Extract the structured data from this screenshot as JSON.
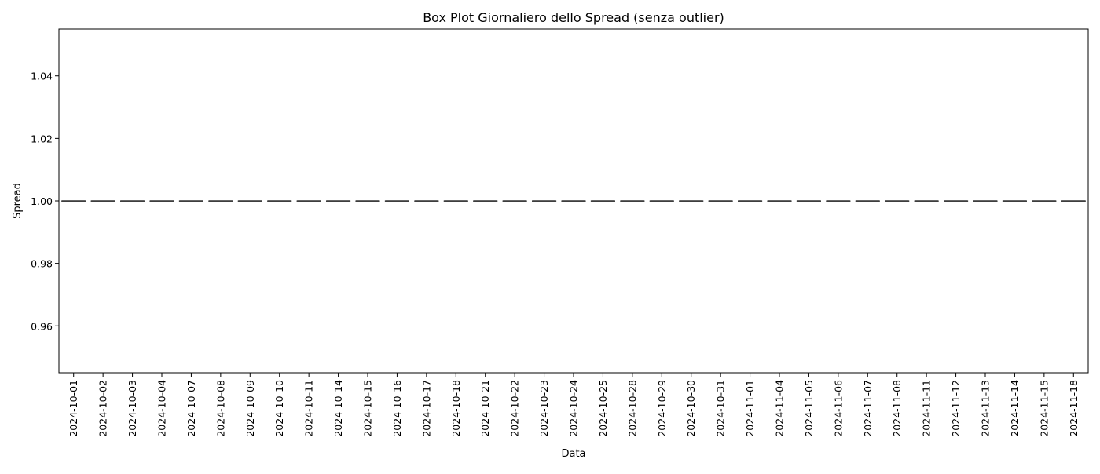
{
  "chart_data": {
    "type": "box",
    "title": "Box Plot Giornaliero dello Spread (senza outlier)",
    "xlabel": "Data",
    "ylabel": "Spread",
    "ylim": [
      0.945,
      1.055
    ],
    "yticks": [
      0.96,
      0.98,
      1.0,
      1.02,
      1.04
    ],
    "ytick_labels": [
      "0.96",
      "0.98",
      "1.00",
      "1.02",
      "1.04"
    ],
    "grid": false,
    "categories": [
      "2024-10-01",
      "2024-10-02",
      "2024-10-03",
      "2024-10-04",
      "2024-10-07",
      "2024-10-08",
      "2024-10-09",
      "2024-10-10",
      "2024-10-11",
      "2024-10-14",
      "2024-10-15",
      "2024-10-16",
      "2024-10-17",
      "2024-10-18",
      "2024-10-21",
      "2024-10-22",
      "2024-10-23",
      "2024-10-24",
      "2024-10-25",
      "2024-10-28",
      "2024-10-29",
      "2024-10-30",
      "2024-10-31",
      "2024-11-01",
      "2024-11-04",
      "2024-11-05",
      "2024-11-06",
      "2024-11-07",
      "2024-11-08",
      "2024-11-11",
      "2024-11-12",
      "2024-11-13",
      "2024-11-14",
      "2024-11-15",
      "2024-11-18"
    ],
    "boxes": [
      {
        "min": 1.0,
        "q1": 1.0,
        "median": 1.0,
        "q3": 1.0,
        "max": 1.0
      },
      {
        "min": 1.0,
        "q1": 1.0,
        "median": 1.0,
        "q3": 1.0,
        "max": 1.0
      },
      {
        "min": 1.0,
        "q1": 1.0,
        "median": 1.0,
        "q3": 1.0,
        "max": 1.0
      },
      {
        "min": 1.0,
        "q1": 1.0,
        "median": 1.0,
        "q3": 1.0,
        "max": 1.0
      },
      {
        "min": 1.0,
        "q1": 1.0,
        "median": 1.0,
        "q3": 1.0,
        "max": 1.0
      },
      {
        "min": 1.0,
        "q1": 1.0,
        "median": 1.0,
        "q3": 1.0,
        "max": 1.0
      },
      {
        "min": 1.0,
        "q1": 1.0,
        "median": 1.0,
        "q3": 1.0,
        "max": 1.0
      },
      {
        "min": 1.0,
        "q1": 1.0,
        "median": 1.0,
        "q3": 1.0,
        "max": 1.0
      },
      {
        "min": 1.0,
        "q1": 1.0,
        "median": 1.0,
        "q3": 1.0,
        "max": 1.0
      },
      {
        "min": 1.0,
        "q1": 1.0,
        "median": 1.0,
        "q3": 1.0,
        "max": 1.0
      },
      {
        "min": 1.0,
        "q1": 1.0,
        "median": 1.0,
        "q3": 1.0,
        "max": 1.0
      },
      {
        "min": 1.0,
        "q1": 1.0,
        "median": 1.0,
        "q3": 1.0,
        "max": 1.0
      },
      {
        "min": 1.0,
        "q1": 1.0,
        "median": 1.0,
        "q3": 1.0,
        "max": 1.0
      },
      {
        "min": 1.0,
        "q1": 1.0,
        "median": 1.0,
        "q3": 1.0,
        "max": 1.0
      },
      {
        "min": 1.0,
        "q1": 1.0,
        "median": 1.0,
        "q3": 1.0,
        "max": 1.0
      },
      {
        "min": 1.0,
        "q1": 1.0,
        "median": 1.0,
        "q3": 1.0,
        "max": 1.0
      },
      {
        "min": 1.0,
        "q1": 1.0,
        "median": 1.0,
        "q3": 1.0,
        "max": 1.0
      },
      {
        "min": 1.0,
        "q1": 1.0,
        "median": 1.0,
        "q3": 1.0,
        "max": 1.0
      },
      {
        "min": 1.0,
        "q1": 1.0,
        "median": 1.0,
        "q3": 1.0,
        "max": 1.0
      },
      {
        "min": 1.0,
        "q1": 1.0,
        "median": 1.0,
        "q3": 1.0,
        "max": 1.0
      },
      {
        "min": 1.0,
        "q1": 1.0,
        "median": 1.0,
        "q3": 1.0,
        "max": 1.0
      },
      {
        "min": 1.0,
        "q1": 1.0,
        "median": 1.0,
        "q3": 1.0,
        "max": 1.0
      },
      {
        "min": 1.0,
        "q1": 1.0,
        "median": 1.0,
        "q3": 1.0,
        "max": 1.0
      },
      {
        "min": 1.0,
        "q1": 1.0,
        "median": 1.0,
        "q3": 1.0,
        "max": 1.0
      },
      {
        "min": 1.0,
        "q1": 1.0,
        "median": 1.0,
        "q3": 1.0,
        "max": 1.0
      },
      {
        "min": 1.0,
        "q1": 1.0,
        "median": 1.0,
        "q3": 1.0,
        "max": 1.0
      },
      {
        "min": 1.0,
        "q1": 1.0,
        "median": 1.0,
        "q3": 1.0,
        "max": 1.0
      },
      {
        "min": 1.0,
        "q1": 1.0,
        "median": 1.0,
        "q3": 1.0,
        "max": 1.0
      },
      {
        "min": 1.0,
        "q1": 1.0,
        "median": 1.0,
        "q3": 1.0,
        "max": 1.0
      },
      {
        "min": 1.0,
        "q1": 1.0,
        "median": 1.0,
        "q3": 1.0,
        "max": 1.0
      },
      {
        "min": 1.0,
        "q1": 1.0,
        "median": 1.0,
        "q3": 1.0,
        "max": 1.0
      },
      {
        "min": 1.0,
        "q1": 1.0,
        "median": 1.0,
        "q3": 1.0,
        "max": 1.0
      },
      {
        "min": 1.0,
        "q1": 1.0,
        "median": 1.0,
        "q3": 1.0,
        "max": 1.0
      },
      {
        "min": 1.0,
        "q1": 1.0,
        "median": 1.0,
        "q3": 1.0,
        "max": 1.0
      },
      {
        "min": 1.0,
        "q1": 1.0,
        "median": 1.0,
        "q3": 1.0,
        "max": 1.0
      }
    ],
    "colors": {
      "box_line": "#3f3f3f",
      "axis": "#000000",
      "background": "#ffffff"
    }
  }
}
